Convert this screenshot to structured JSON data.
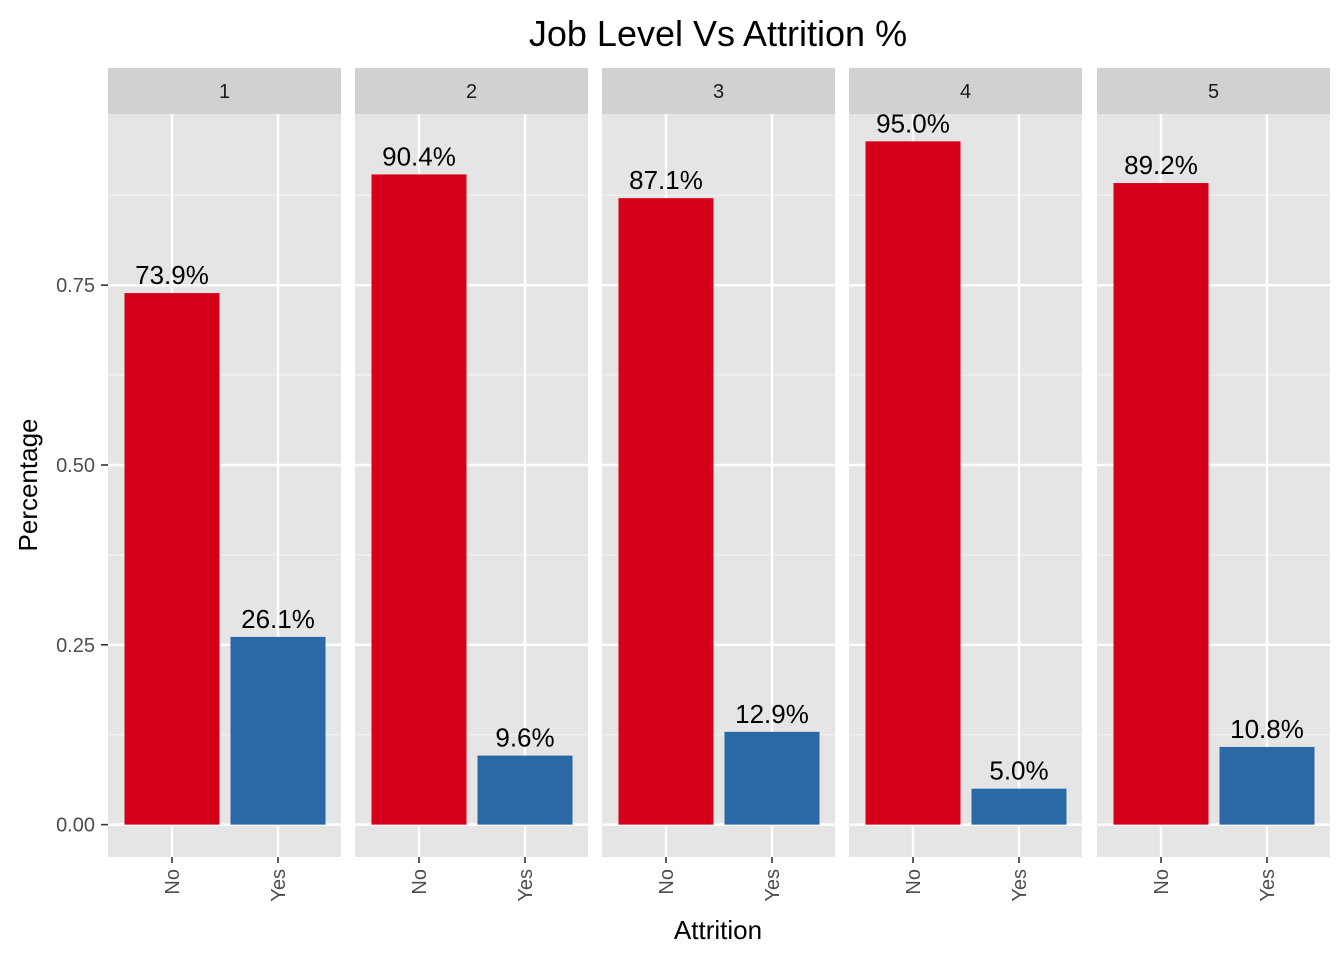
{
  "chart_data": {
    "type": "bar",
    "title": "Job Level Vs Attrition %",
    "xlabel": "Attrition",
    "ylabel": "Percentage",
    "ylim": [
      -0.045,
      0.988
    ],
    "yticks": [
      0.0,
      0.25,
      0.5,
      0.75
    ],
    "ytick_labels": [
      "0.00",
      "0.25",
      "0.50",
      "0.75"
    ],
    "categories": [
      "No",
      "Yes"
    ],
    "category_colors": {
      "No": "#d7001a",
      "Yes": "#2b68a6"
    },
    "grid": true,
    "facets": [
      {
        "label": "1",
        "values": [
          0.739,
          0.261
        ],
        "labels": [
          "73.9%",
          "26.1%"
        ]
      },
      {
        "label": "2",
        "values": [
          0.904,
          0.096
        ],
        "labels": [
          "90.4%",
          "9.6%"
        ]
      },
      {
        "label": "3",
        "values": [
          0.871,
          0.129
        ],
        "labels": [
          "87.1%",
          "12.9%"
        ]
      },
      {
        "label": "4",
        "values": [
          0.95,
          0.05
        ],
        "labels": [
          "95.0%",
          "5.0%"
        ]
      },
      {
        "label": "5",
        "values": [
          0.892,
          0.108
        ],
        "labels": [
          "89.2%",
          "10.8%"
        ]
      }
    ]
  },
  "colors": {
    "panel_background": "#e5e5e5",
    "strip_background": "#d1d1d1",
    "grid_major": "#ffffff",
    "grid_minor": "#f2f2f2"
  }
}
